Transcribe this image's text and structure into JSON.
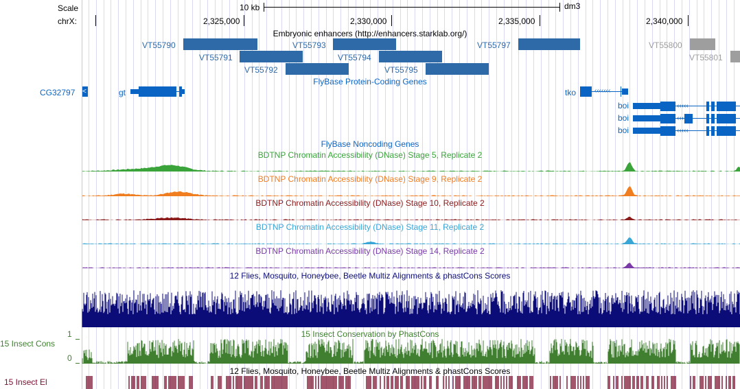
{
  "ruler": {
    "scale_label": "Scale",
    "chrom_label": "chrX:",
    "scale_bar_label": "10 kb",
    "assembly": "dm3",
    "positions": [
      "2,325,000",
      "2,330,000",
      "2,335,000",
      "2,340,000"
    ]
  },
  "tracks": {
    "enhancers": {
      "title": "Embryonic enhancers (http://enhancers.starklab.org/)",
      "items": [
        "VT55790",
        "VT55791",
        "VT55792",
        "VT55793",
        "VT55794",
        "VT55795",
        "VT55797",
        "VT55800",
        "VT55801"
      ]
    },
    "protein_coding": {
      "title": "FlyBase Protein-Coding Genes",
      "genes": [
        "CG32797",
        "gt",
        "tko",
        "boi",
        "boi",
        "boi"
      ]
    },
    "noncoding": {
      "title": "FlyBase Noncoding Genes"
    },
    "dnase": [
      {
        "title": "BDTNP Chromatin Accessibility (DNase) Stage 5, Replicate 2",
        "color": "#3aa33a"
      },
      {
        "title": "BDTNP Chromatin Accessibility (DNase) Stage 9, Replicate 2",
        "color": "#f07d20"
      },
      {
        "title": "BDTNP Chromatin Accessibility (DNase) Stage 10, Replicate 2",
        "color": "#8b1a1a"
      },
      {
        "title": "BDTNP Chromatin Accessibility (DNase) Stage 11, Replicate 2",
        "color": "#3aa6d6"
      },
      {
        "title": "BDTNP Chromatin Accessibility (DNase) Stage 14, Replicate 2",
        "color": "#7a3aa8"
      }
    ],
    "multiz": {
      "title": "12 Flies, Mosquito, Honeybee, Beetle Multiz Alignments & phastCons Scores",
      "color": "#0c0c78"
    },
    "phastcons": {
      "title": "15 Insect Conservation by PhastCons",
      "side_label": "15 Insect Cons",
      "y_max": "1",
      "y_min": "0",
      "color": "#3f7f2f"
    },
    "elements": {
      "title": "12 Flies, Mosquito, Honeybee, Beetle Multiz Alignments & phastCons Scores",
      "side_label": "15 Insect El",
      "color": "#7a0f2e"
    }
  },
  "colors": {
    "enhancer_box": "#2f6aa8",
    "enhancer_gray": "#9e9e9e",
    "gene_blue": "#0a64c4",
    "grid": "#d9d9f3"
  }
}
